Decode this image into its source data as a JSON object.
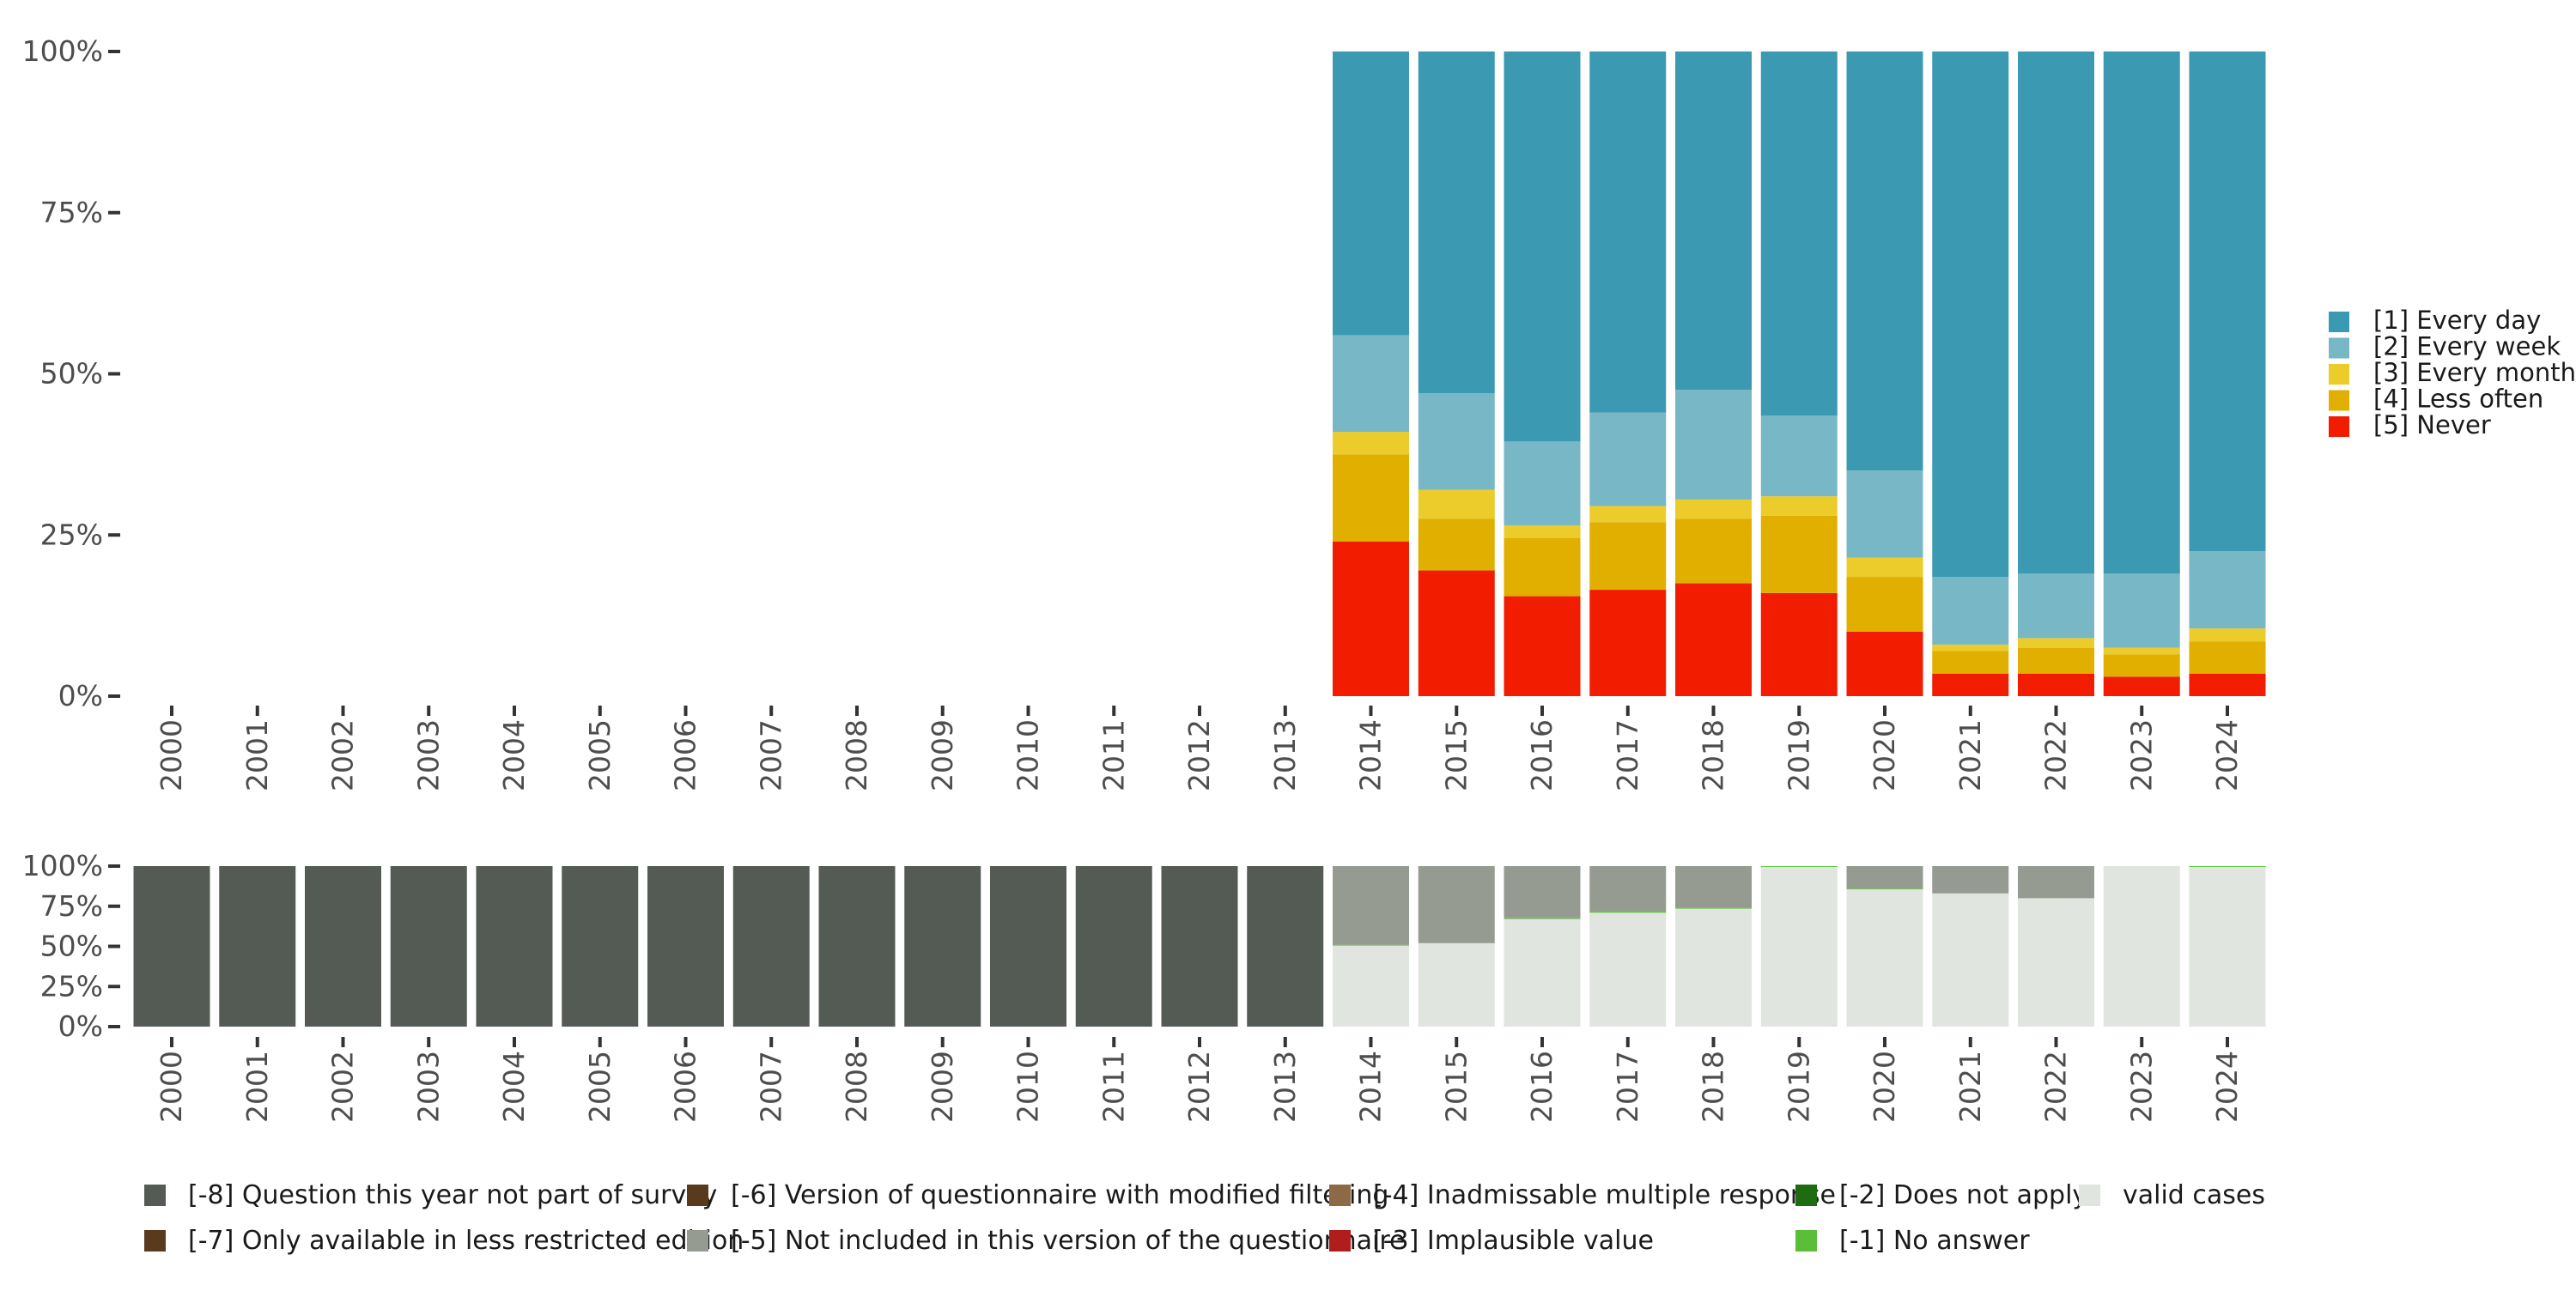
{
  "chart_data": [
    {
      "type": "bar",
      "stacked": true,
      "title": "",
      "xlabel": "",
      "ylabel": "",
      "ylim": [
        0,
        100
      ],
      "y_ticks": [
        "0%",
        "25%",
        "50%",
        "75%",
        "100%"
      ],
      "categories": [
        "2000",
        "2001",
        "2002",
        "2003",
        "2004",
        "2005",
        "2006",
        "2007",
        "2008",
        "2009",
        "2010",
        "2011",
        "2012",
        "2013",
        "2014",
        "2015",
        "2016",
        "2017",
        "2018",
        "2019",
        "2020",
        "2021",
        "2022",
        "2023",
        "2024"
      ],
      "series": [
        {
          "name": "[5] Never",
          "color": "#f21c00",
          "values": [
            null,
            null,
            null,
            null,
            null,
            null,
            null,
            null,
            null,
            null,
            null,
            null,
            null,
            null,
            24,
            19.5,
            15.5,
            16.5,
            17.5,
            16,
            10,
            3.5,
            3.5,
            3,
            3.5
          ]
        },
        {
          "name": "[4] Less often",
          "color": "#e0af00",
          "values": [
            null,
            null,
            null,
            null,
            null,
            null,
            null,
            null,
            null,
            null,
            null,
            null,
            null,
            null,
            13.5,
            8,
            9,
            10.5,
            10,
            12,
            8.5,
            3.5,
            4,
            3.5,
            5
          ]
        },
        {
          "name": "[3] Every month",
          "color": "#ebcc2a",
          "values": [
            null,
            null,
            null,
            null,
            null,
            null,
            null,
            null,
            null,
            null,
            null,
            null,
            null,
            null,
            3.5,
            4.5,
            2,
            2.5,
            3,
            3,
            3,
            1,
            1.5,
            1,
            2
          ]
        },
        {
          "name": "[2] Every week",
          "color": "#78b7c5",
          "values": [
            null,
            null,
            null,
            null,
            null,
            null,
            null,
            null,
            null,
            null,
            null,
            null,
            null,
            null,
            15,
            15,
            13,
            14.5,
            17,
            12.5,
            13.5,
            10.5,
            10,
            11.5,
            12
          ]
        },
        {
          "name": "[1] Every day",
          "color": "#3b9ab2",
          "values": [
            null,
            null,
            null,
            null,
            null,
            null,
            null,
            null,
            null,
            null,
            null,
            null,
            null,
            null,
            44,
            53,
            60.5,
            56,
            52.5,
            56.5,
            65,
            81.5,
            81,
            81,
            77.5
          ]
        }
      ],
      "legend_position": "right"
    },
    {
      "type": "bar",
      "stacked": true,
      "title": "",
      "xlabel": "",
      "ylabel": "",
      "ylim": [
        0,
        100
      ],
      "y_ticks": [
        "0%",
        "25%",
        "50%",
        "75%",
        "100%"
      ],
      "categories": [
        "2000",
        "2001",
        "2002",
        "2003",
        "2004",
        "2005",
        "2006",
        "2007",
        "2008",
        "2009",
        "2010",
        "2011",
        "2012",
        "2013",
        "2014",
        "2015",
        "2016",
        "2017",
        "2018",
        "2019",
        "2020",
        "2021",
        "2022",
        "2023",
        "2024"
      ],
      "series": [
        {
          "name": "valid cases",
          "color": "#e1e5df",
          "values": [
            0,
            0,
            0,
            0,
            0,
            0,
            0,
            0,
            0,
            0,
            0,
            0,
            0,
            0,
            50.5,
            52,
            67,
            71,
            73.5,
            99.5,
            85.5,
            83,
            80,
            100,
            99.5
          ]
        },
        {
          "name": "[-1] No answer",
          "color": "#5abe3a",
          "values": [
            0,
            0,
            0,
            0,
            0,
            0,
            0,
            0,
            0,
            0,
            0,
            0,
            0,
            0,
            0.5,
            0,
            0.5,
            1,
            0.5,
            0.5,
            0.5,
            0,
            0,
            0,
            0.5
          ]
        },
        {
          "name": "[-5] Not included in this version of the questionnaire",
          "color": "#969b91",
          "values": [
            0,
            0,
            0,
            0,
            0,
            0,
            0,
            0,
            0,
            0,
            0,
            0,
            0,
            0,
            49,
            48,
            32.5,
            28,
            26,
            0,
            14,
            17,
            20,
            0,
            0
          ]
        },
        {
          "name": "[-8] Question this year not part of survey",
          "color": "#545b55",
          "values": [
            100,
            100,
            100,
            100,
            100,
            100,
            100,
            100,
            100,
            100,
            100,
            100,
            100,
            100,
            0,
            0,
            0,
            0,
            0,
            0,
            0,
            0,
            0,
            0,
            0
          ]
        }
      ],
      "legend_position": "bottom"
    }
  ],
  "legend_bottom": [
    {
      "label": "[-8] Question this year not part of survey",
      "color": "#545b55"
    },
    {
      "label": "[-7] Only available in less restricted edition",
      "color": "#5a3a1c"
    },
    {
      "label": "[-6] Version of questionnaire with modified filtering",
      "color": "#5a3a1c"
    },
    {
      "label": "[-5] Not included in this version of the questionnaire",
      "color": "#969b91"
    },
    {
      "label": "[-4] Inadmissable multiple response",
      "color": "#8c6a45"
    },
    {
      "label": "[-3] Implausible value",
      "color": "#b01d1d"
    },
    {
      "label": "[-2] Does not apply",
      "color": "#1f6b12"
    },
    {
      "label": "[-1] No answer",
      "color": "#5abe3a"
    },
    {
      "label": "valid cases",
      "color": "#e1e5df"
    }
  ]
}
